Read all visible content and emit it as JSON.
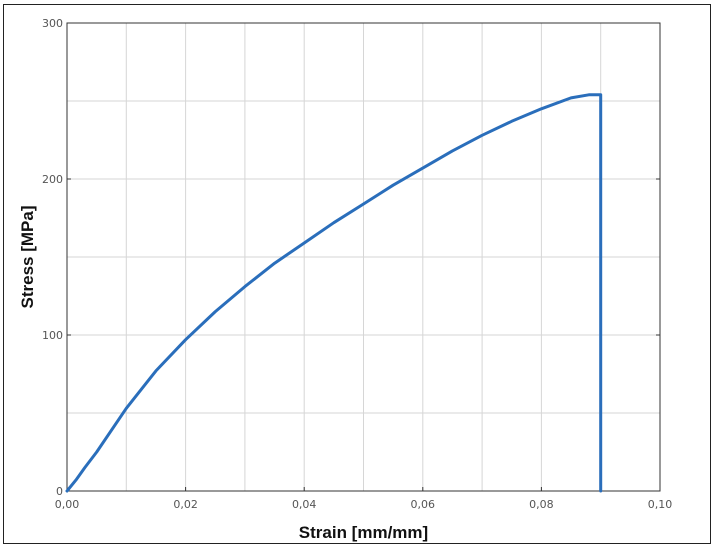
{
  "chart_data": {
    "type": "line",
    "xlabel": "Strain [mm/mm]",
    "ylabel": "Stress [MPa]",
    "xlim": [
      0,
      0.1
    ],
    "ylim": [
      0,
      300
    ],
    "x_ticks": [
      "0,00",
      "0,02",
      "0,04",
      "0,06",
      "0,08",
      "0,10"
    ],
    "y_ticks": [
      "0",
      "100",
      "200",
      "300"
    ],
    "grid": true,
    "legend": "none",
    "colors": {
      "line": "#2a6ebb"
    },
    "series": [
      {
        "x": [
          0,
          0.0015,
          0.003,
          0.005,
          0.01,
          0.015,
          0.02,
          0.025,
          0.03,
          0.035,
          0.04,
          0.045,
          0.05,
          0.055,
          0.06,
          0.065,
          0.07,
          0.075,
          0.08,
          0.085,
          0.088,
          0.09,
          0.09
        ],
        "y": [
          0,
          7,
          15,
          25,
          53,
          77,
          97,
          115,
          131,
          146,
          159,
          172,
          184,
          196,
          207,
          218,
          228,
          237,
          245,
          252,
          254,
          254,
          0
        ]
      }
    ]
  }
}
